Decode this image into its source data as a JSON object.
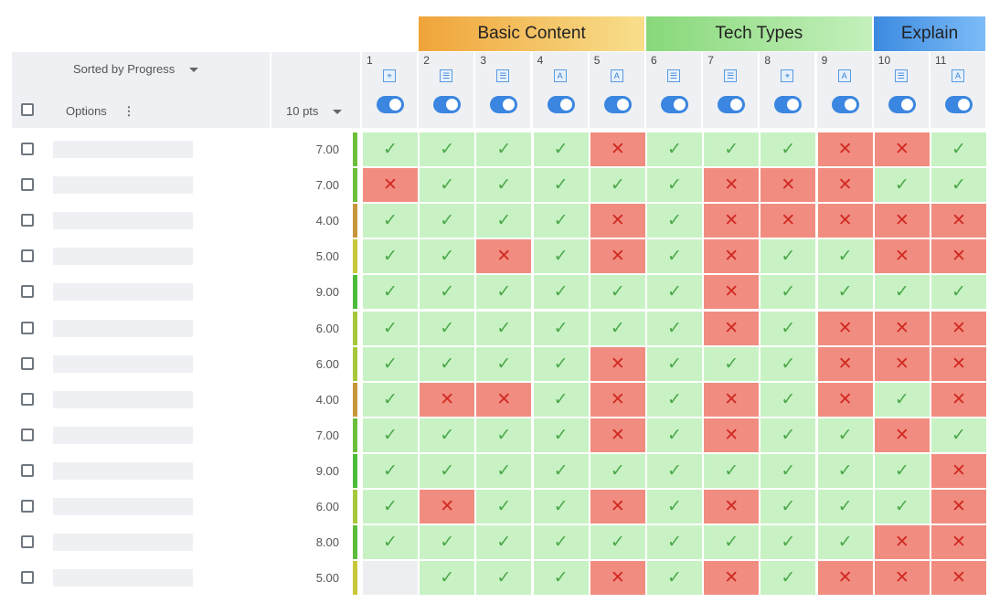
{
  "groups": [
    {
      "label": "Basic Content",
      "from": 2,
      "to": 5,
      "colors": [
        "#f0a43a",
        "#f8df8c"
      ]
    },
    {
      "label": "Tech Types",
      "from": 6,
      "to": 9,
      "colors": [
        "#88d87a",
        "#c4f0bc"
      ]
    },
    {
      "label": "Explain",
      "from": 10,
      "to": 11,
      "colors": [
        "#3c8ae0",
        "#7cbcf8"
      ]
    }
  ],
  "header": {
    "sort_label": "Sorted by Progress",
    "options_label": "Options",
    "points_label": "10 pts"
  },
  "columns": [
    {
      "num": "1",
      "icon": "scatter-icon"
    },
    {
      "num": "2",
      "icon": "list-icon"
    },
    {
      "num": "3",
      "icon": "list-icon"
    },
    {
      "num": "4",
      "icon": "text-image-icon"
    },
    {
      "num": "5",
      "icon": "text-image-icon"
    },
    {
      "num": "6",
      "icon": "list-icon"
    },
    {
      "num": "7",
      "icon": "list-icon"
    },
    {
      "num": "8",
      "icon": "scatter-icon"
    },
    {
      "num": "9",
      "icon": "text-image-icon"
    },
    {
      "num": "10",
      "icon": "list-icon"
    },
    {
      "num": "11",
      "icon": "text-image-icon"
    }
  ],
  "rows": [
    {
      "score": "7.00",
      "strip": "#6cbf3a",
      "cells": "1111011100 1"
    },
    {
      "score": "7.00",
      "strip": "#6cbf3a",
      "cells": "0111110001 1"
    },
    {
      "score": "4.00",
      "strip": "#c8963a",
      "cells": "1111010000 0"
    },
    {
      "score": "5.00",
      "strip": "#c8c83a",
      "cells": "1101010110 0"
    },
    {
      "score": "9.00",
      "strip": "#4cbb3a",
      "cells": "1111110111 1"
    },
    {
      "score": "6.00",
      "strip": "#a6c83a",
      "cells": "1111110100 0"
    },
    {
      "score": "6.00",
      "strip": "#a6c83a",
      "cells": "1111011100 0"
    },
    {
      "score": "4.00",
      "strip": "#c8963a",
      "cells": "1001010101 0"
    },
    {
      "score": "7.00",
      "strip": "#6cbf3a",
      "cells": "1111010110 1"
    },
    {
      "score": "9.00",
      "strip": "#4cbb3a",
      "cells": "1111111111 0"
    },
    {
      "score": "6.00",
      "strip": "#a6c83a",
      "cells": "1011010111 0"
    },
    {
      "score": "8.00",
      "strip": "#5cbd3a",
      "cells": "1111111110 0"
    },
    {
      "score": "5.00",
      "strip": "#c8c83a",
      "cells": "-111010100 0"
    }
  ],
  "symbols": {
    "ok": "✓",
    "no": "✕"
  }
}
